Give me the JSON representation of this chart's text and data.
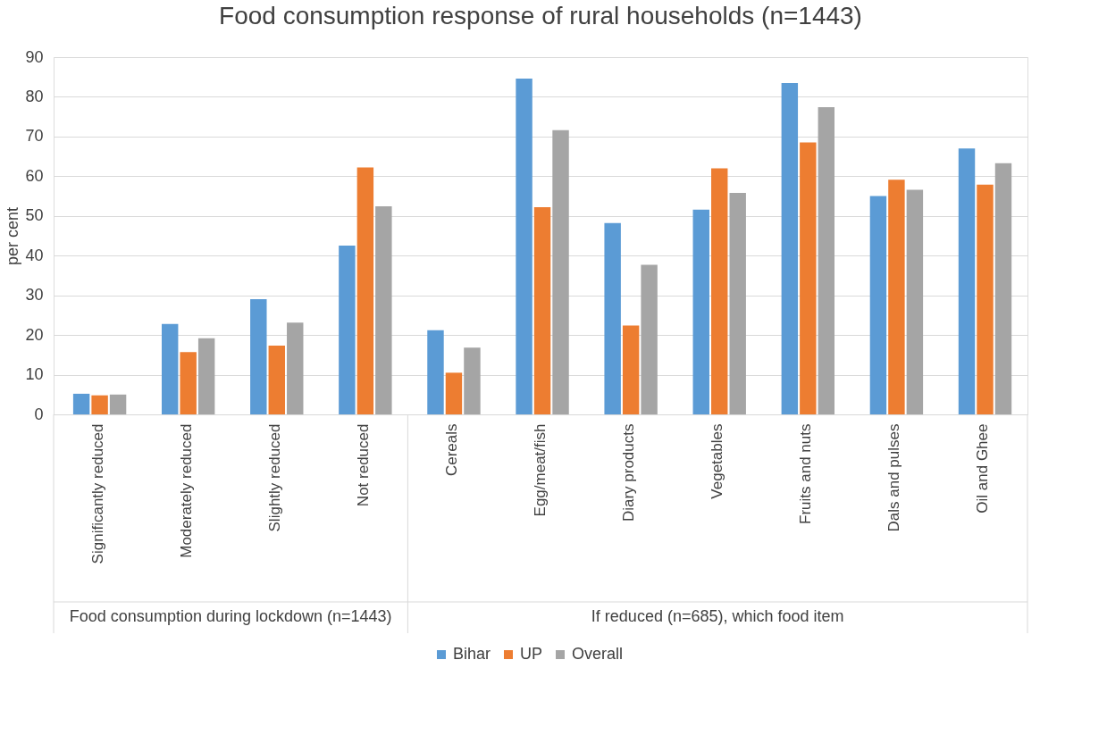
{
  "chart_data": {
    "type": "bar",
    "title": "Food consumption response of rural households (n=1443)",
    "ylabel": "per cent",
    "categories": [
      "Significantly reduced",
      "Moderately reduced",
      "Slightly reduced",
      "Not reduced",
      "Cereals",
      "Egg/meat/fish",
      "Diary products",
      "Vegetables",
      "Fruits and nuts",
      "Dals and pulses",
      "Oil and Ghee"
    ],
    "series": [
      {
        "name": "Bihar",
        "color": "#5b9bd5",
        "values": [
          5.2,
          22.8,
          29,
          42.5,
          21.2,
          84.6,
          48.2,
          51.6,
          83.5,
          55,
          67
        ]
      },
      {
        "name": "UP",
        "color": "#ed7d31",
        "values": [
          4.8,
          15.7,
          17.3,
          62.2,
          10.5,
          52.2,
          22.4,
          62,
          68.5,
          59.1,
          57.9
        ]
      },
      {
        "name": "Overall",
        "color": "#a5a5a5",
        "values": [
          5,
          19.2,
          23.1,
          52.4,
          16.8,
          71.6,
          37.7,
          55.8,
          77.4,
          56.6,
          63.3
        ]
      }
    ],
    "annotations": [
      "Food consumption during lockdown (n=1443)",
      "If reduced (n=685), which food item"
    ],
    "ylim": [
      0,
      90
    ],
    "yticks": [
      0,
      10,
      20,
      30,
      40,
      50,
      60,
      70,
      80,
      90
    ],
    "grid": "y",
    "legend": "bottom"
  }
}
